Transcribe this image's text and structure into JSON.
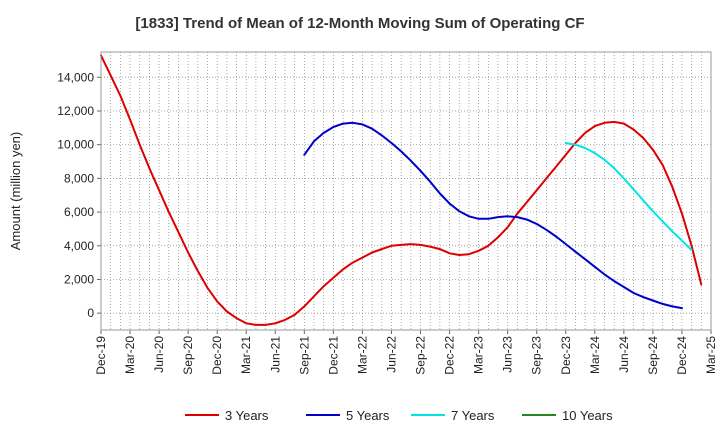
{
  "chart_data": {
    "type": "line",
    "title": "[1833]  Trend of Mean of 12-Month Moving Sum of Operating CF",
    "xlabel": "",
    "ylabel": "Amount (million yen)",
    "ylim": [
      -1000,
      15500
    ],
    "yticks": [
      0,
      2000,
      4000,
      6000,
      8000,
      10000,
      12000,
      14000
    ],
    "ytick_labels": [
      "0",
      "2,000",
      "4,000",
      "6,000",
      "8,000",
      "10,000",
      "12,000",
      "14,000"
    ],
    "x_start": "Dec-19",
    "x_months": 63,
    "tick_labels": [
      "Dec-19",
      "Mar-20",
      "Jun-20",
      "Sep-20",
      "Dec-20",
      "Mar-21",
      "Jun-21",
      "Sep-21",
      "Dec-21",
      "Mar-22",
      "Jun-22",
      "Sep-22",
      "Dec-22",
      "Mar-23",
      "Jun-23",
      "Sep-23",
      "Dec-23",
      "Mar-24",
      "Jun-24",
      "Sep-24",
      "Dec-24",
      "Mar-25"
    ],
    "grid": true,
    "legend_position": "bottom",
    "series": [
      {
        "name": "3 Years",
        "color": "#dd0000",
        "start_index": 0,
        "values": [
          15300,
          14100,
          12900,
          11500,
          10000,
          8600,
          7300,
          6000,
          4800,
          3600,
          2500,
          1500,
          700,
          100,
          -300,
          -600,
          -700,
          -700,
          -600,
          -400,
          -100,
          400,
          1000,
          1600,
          2100,
          2600,
          3000,
          3300,
          3600,
          3800,
          4000,
          4050,
          4100,
          4050,
          3950,
          3800,
          3550,
          3450,
          3500,
          3700,
          4000,
          4500,
          5100,
          5900,
          6600,
          7300,
          8000,
          8700,
          9400,
          10100,
          10700,
          11100,
          11300,
          11350,
          11250,
          10900,
          10400,
          9700,
          8800,
          7500,
          5900,
          4000,
          1700
        ]
      },
      {
        "name": "5 Years",
        "color": "#0000cc",
        "start_index": 21,
        "values": [
          9400,
          10200,
          10700,
          11050,
          11250,
          11300,
          11200,
          10950,
          10550,
          10100,
          9600,
          9050,
          8450,
          7800,
          7100,
          6500,
          6050,
          5750,
          5600,
          5600,
          5700,
          5750,
          5700,
          5550,
          5300,
          4950,
          4550,
          4100,
          3650,
          3200,
          2750,
          2300,
          1900,
          1550,
          1200,
          950,
          750,
          550,
          400,
          300
        ]
      },
      {
        "name": "7 Years",
        "color": "#00e5e5",
        "start_index": 48,
        "values": [
          10100,
          10000,
          9800,
          9500,
          9100,
          8600,
          8000,
          7350,
          6700,
          6050,
          5450,
          4850,
          4300,
          3750
        ]
      },
      {
        "name": "10 Years",
        "color": "#228822",
        "start_index": 0,
        "values": []
      }
    ]
  }
}
